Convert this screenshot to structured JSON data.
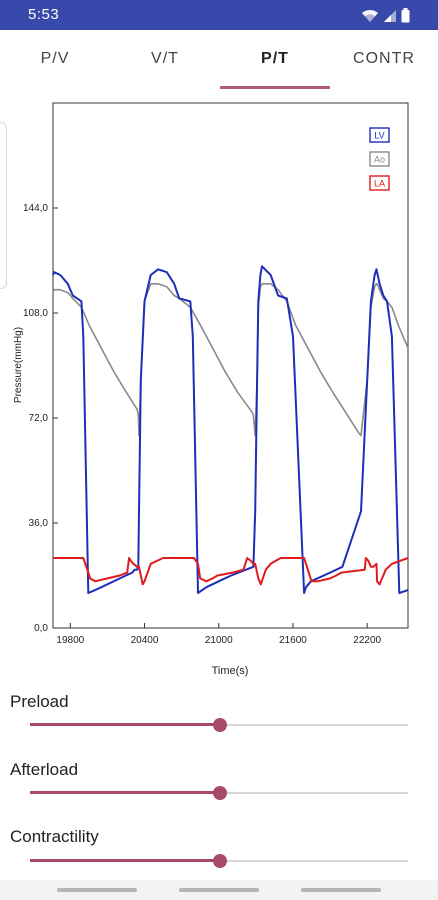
{
  "status_bar": {
    "time": "5:53",
    "bg_color": "#3949ab"
  },
  "tabs": [
    {
      "label": "P/V",
      "active": false
    },
    {
      "label": "V/T",
      "active": false
    },
    {
      "label": "P/T",
      "active": true
    },
    {
      "label": "CONTR",
      "active": false
    }
  ],
  "chart_data": {
    "type": "line",
    "title": "",
    "xlabel": "Time(s)",
    "ylabel": "Pressure(mmHg)",
    "xlim": [
      19660,
      22530
    ],
    "ylim": [
      0,
      180
    ],
    "xticks": [
      19800,
      20400,
      21000,
      21600,
      22200
    ],
    "xtick_labels": [
      "19800",
      "20400",
      "21000",
      "21600",
      "22200"
    ],
    "yticks": [
      0,
      36,
      72,
      108,
      144
    ],
    "ytick_labels": [
      "0,0",
      "36,0",
      "72,0",
      "108,0",
      "144,0"
    ],
    "grid": false,
    "legend": "top-right",
    "series": [
      {
        "name": "LV",
        "color": "#1f2dbb",
        "x": [
          19660,
          19670,
          19720,
          19780,
          19820,
          19890,
          19905,
          19945,
          20000,
          20100,
          20200,
          20300,
          20320,
          20340,
          20350,
          20355,
          20370,
          20400,
          20450,
          20510,
          20580,
          20640,
          20680,
          20770,
          20790,
          20832,
          20900,
          21000,
          21100,
          21280,
          21295,
          21310,
          21320,
          21337,
          21350,
          21420,
          21480,
          21550,
          21600,
          21690,
          21705,
          21745,
          21900,
          22000,
          22150,
          22200,
          22230,
          22260,
          22275,
          22280,
          22300,
          22330,
          22360,
          22400,
          22460,
          22530
        ],
        "y": [
          121,
          122,
          121,
          118,
          114,
          112,
          100,
          12,
          13,
          15,
          17,
          19,
          20,
          20,
          21,
          40,
          85,
          112,
          121,
          123,
          122,
          118,
          113,
          112,
          100,
          12,
          14,
          16,
          18,
          21,
          40,
          85,
          112,
          121,
          124,
          121,
          114,
          113,
          100,
          12,
          14,
          16,
          19,
          21,
          40,
          85,
          112,
          121,
          123,
          122,
          118,
          114,
          112,
          100,
          12,
          13
        ]
      },
      {
        "name": "Ao",
        "color": "#8a8a8a",
        "x": [
          19660,
          19670,
          19720,
          19780,
          19820,
          19890,
          19950,
          20050,
          20150,
          20250,
          20340,
          20350,
          20355,
          20370,
          20400,
          20450,
          20510,
          20580,
          20640,
          20680,
          20770,
          20850,
          20950,
          21050,
          21150,
          21270,
          21280,
          21295,
          21310,
          21320,
          21337,
          21350,
          21420,
          21480,
          21550,
          21620,
          21720,
          21820,
          21920,
          22130,
          22150,
          22200,
          22230,
          22260,
          22275,
          22280,
          22300,
          22330,
          22360,
          22400,
          22450,
          22530
        ],
        "y": [
          115,
          116,
          116,
          115,
          113,
          110,
          104,
          96,
          88,
          81,
          75,
          73,
          66,
          85,
          112,
          118,
          118,
          117,
          114,
          113,
          110,
          104,
          96,
          88,
          81,
          74,
          73,
          66,
          85,
          110,
          117,
          118,
          118,
          116,
          112,
          104,
          96,
          88,
          81,
          67,
          66,
          85,
          110,
          117,
          118,
          118,
          116,
          113,
          112,
          110,
          104,
          96
        ]
      },
      {
        "name": "LA",
        "color": "#e01b1b",
        "x": [
          19660,
          19670,
          19720,
          19800,
          19850,
          19880,
          19890,
          19905,
          19945,
          19960,
          20000,
          20100,
          20200,
          20260,
          20275,
          20290,
          20310,
          20340,
          20350,
          20355,
          20370,
          20385,
          20400,
          20450,
          20550,
          20680,
          20800,
          20832,
          20850,
          20900,
          20950,
          20990,
          21110,
          21200,
          21230,
          21260,
          21280,
          21295,
          21320,
          21340,
          21380,
          21420,
          21500,
          21600,
          21670,
          21690,
          21705,
          21750,
          21800,
          21900,
          21950,
          21990,
          22180,
          22190,
          22210,
          22230,
          22250,
          22275,
          22280,
          22300,
          22350,
          22400,
          22530
        ],
        "y": [
          24,
          24,
          24,
          24,
          24,
          24,
          24,
          24,
          19,
          17,
          16,
          17,
          18,
          19,
          24,
          23,
          22,
          21,
          21,
          21,
          18,
          15,
          16,
          22,
          24,
          24,
          24,
          22,
          17,
          16,
          17,
          18,
          19,
          20,
          24,
          23,
          22,
          22,
          17,
          15,
          20,
          22,
          24,
          24,
          24,
          24,
          22,
          16,
          16,
          17,
          18,
          19,
          20,
          24,
          23,
          21,
          21,
          22,
          16,
          15,
          20,
          22,
          24
        ]
      }
    ]
  },
  "sliders": [
    {
      "label": "Preload",
      "value": 0.502
    },
    {
      "label": "Afterload",
      "value": 0.502
    },
    {
      "label": "Contractility",
      "value": 0.502
    }
  ]
}
